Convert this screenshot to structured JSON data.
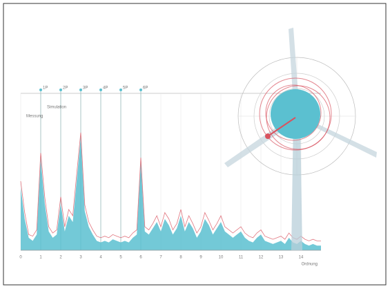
{
  "chart_data": {
    "type": "spectrum",
    "x_label": "Ordnung",
    "xlim": [
      0,
      15
    ],
    "ylim": [
      0,
      100
    ],
    "xticks": [
      0,
      1,
      2,
      3,
      4,
      5,
      6,
      7,
      8,
      9,
      10,
      11,
      12,
      13,
      14
    ],
    "grid": true,
    "markers": [
      {
        "x": 1,
        "label": "1P"
      },
      {
        "x": 2,
        "label": "2P"
      },
      {
        "x": 3,
        "label": "3P"
      },
      {
        "x": 4,
        "label": "4P"
      },
      {
        "x": 5,
        "label": "5P"
      },
      {
        "x": 6,
        "label": "6P"
      }
    ],
    "x": [
      0,
      0.2,
      0.4,
      0.6,
      0.8,
      1,
      1.2,
      1.4,
      1.6,
      1.8,
      2,
      2.2,
      2.4,
      2.6,
      2.8,
      3,
      3.2,
      3.4,
      3.6,
      3.8,
      4,
      4.2,
      4.4,
      4.6,
      4.8,
      5,
      5.2,
      5.4,
      5.6,
      5.8,
      6,
      6.2,
      6.4,
      6.6,
      6.8,
      7,
      7.2,
      7.4,
      7.6,
      7.8,
      8,
      8.2,
      8.4,
      8.6,
      8.8,
      9,
      9.2,
      9.4,
      9.6,
      9.8,
      10,
      10.2,
      10.4,
      10.6,
      10.8,
      11,
      11.2,
      11.4,
      11.6,
      11.8,
      12,
      12.2,
      12.4,
      12.6,
      12.8,
      13,
      13.2,
      13.4,
      13.6,
      13.8,
      14,
      14.2,
      14.4,
      14.6,
      14.8,
      15
    ],
    "series": [
      {
        "name": "Messung",
        "color": "#5bc0d0",
        "values": [
          40,
          20,
          8,
          6,
          10,
          58,
          30,
          12,
          8,
          10,
          30,
          12,
          22,
          18,
          45,
          72,
          25,
          15,
          10,
          6,
          5,
          6,
          5,
          7,
          6,
          5,
          6,
          5,
          8,
          10,
          56,
          12,
          10,
          14,
          18,
          12,
          20,
          16,
          10,
          14,
          22,
          12,
          18,
          14,
          8,
          12,
          20,
          16,
          10,
          14,
          18,
          12,
          10,
          8,
          10,
          12,
          8,
          6,
          5,
          8,
          10,
          6,
          5,
          4,
          5,
          6,
          4,
          8,
          5,
          4,
          6,
          4,
          3,
          4,
          3,
          3
        ]
      },
      {
        "name": "Simulation",
        "color": "#d9535f",
        "values": [
          44,
          24,
          10,
          9,
          13,
          62,
          34,
          15,
          11,
          13,
          34,
          15,
          26,
          22,
          49,
          75,
          29,
          18,
          13,
          9,
          8,
          9,
          8,
          10,
          9,
          8,
          9,
          8,
          11,
          13,
          59,
          15,
          13,
          17,
          22,
          15,
          24,
          20,
          13,
          17,
          26,
          15,
          22,
          17,
          11,
          15,
          24,
          19,
          13,
          17,
          22,
          15,
          13,
          11,
          13,
          15,
          11,
          9,
          8,
          11,
          13,
          9,
          8,
          7,
          8,
          9,
          7,
          11,
          8,
          7,
          9,
          7,
          6,
          7,
          6,
          6
        ]
      }
    ]
  }
}
